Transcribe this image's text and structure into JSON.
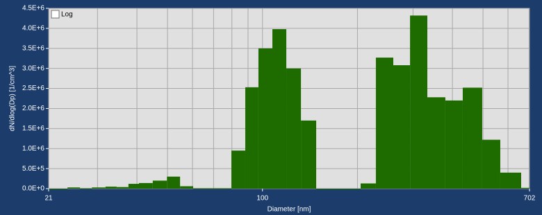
{
  "chart_data": {
    "type": "histogram",
    "xlabel": "Diameter [nm]",
    "ylabel": "dN/dlog(Dp) [1/cm^3]",
    "xscale": "log",
    "xlim": [
      21,
      702
    ],
    "xticks": [
      21,
      100,
      702
    ],
    "xgrid": [
      30,
      40,
      50,
      60,
      70,
      80,
      90,
      100,
      200,
      300,
      400,
      500,
      600,
      700
    ],
    "ylim": [
      0,
      4500000
    ],
    "yticks": [
      {
        "value": 0,
        "label": "0.0E+0"
      },
      {
        "value": 500000,
        "label": "5.0E+5"
      },
      {
        "value": 1000000,
        "label": "1.0E+6"
      },
      {
        "value": 1500000,
        "label": "1.5E+6"
      },
      {
        "value": 2000000,
        "label": "2.0E+6"
      },
      {
        "value": 2500000,
        "label": "2.5E+6"
      },
      {
        "value": 3000000,
        "label": "3.0E+6"
      },
      {
        "value": 3500000,
        "label": "3.5E+6"
      },
      {
        "value": 4000000,
        "label": "4.0E+6"
      },
      {
        "value": 4500000,
        "label": "4.5E+6"
      }
    ],
    "grid": true,
    "color": "#1e6b00",
    "bins": [
      21,
      22.9,
      24.1,
      26.4,
      28.8,
      31.8,
      34.5,
      37.6,
      40.6,
      44.9,
      49.8,
      54.8,
      60.3,
      66.1,
      72.4,
      79.7,
      88.2,
      97.1,
      107.5,
      119.0,
      132.4,
      148.0,
      164.6,
      183.1,
      204.7,
      228.8,
      259.8,
      293.6,
      333.1,
      379.9,
      431.3,
      497.1,
      567.2,
      660.5,
      702
    ],
    "counts": [
      0,
      0,
      30000,
      10000,
      30000,
      50000,
      40000,
      120000,
      140000,
      200000,
      300000,
      60000,
      10000,
      10000,
      10000,
      950000,
      2530000,
      3500000,
      3980000,
      3000000,
      1700000,
      0,
      0,
      0,
      130000,
      3270000,
      3080000,
      4320000,
      2280000,
      2200000,
      2520000,
      1220000,
      400000,
      20000
    ],
    "log_toggle": {
      "label": "Log",
      "checked": false
    }
  }
}
